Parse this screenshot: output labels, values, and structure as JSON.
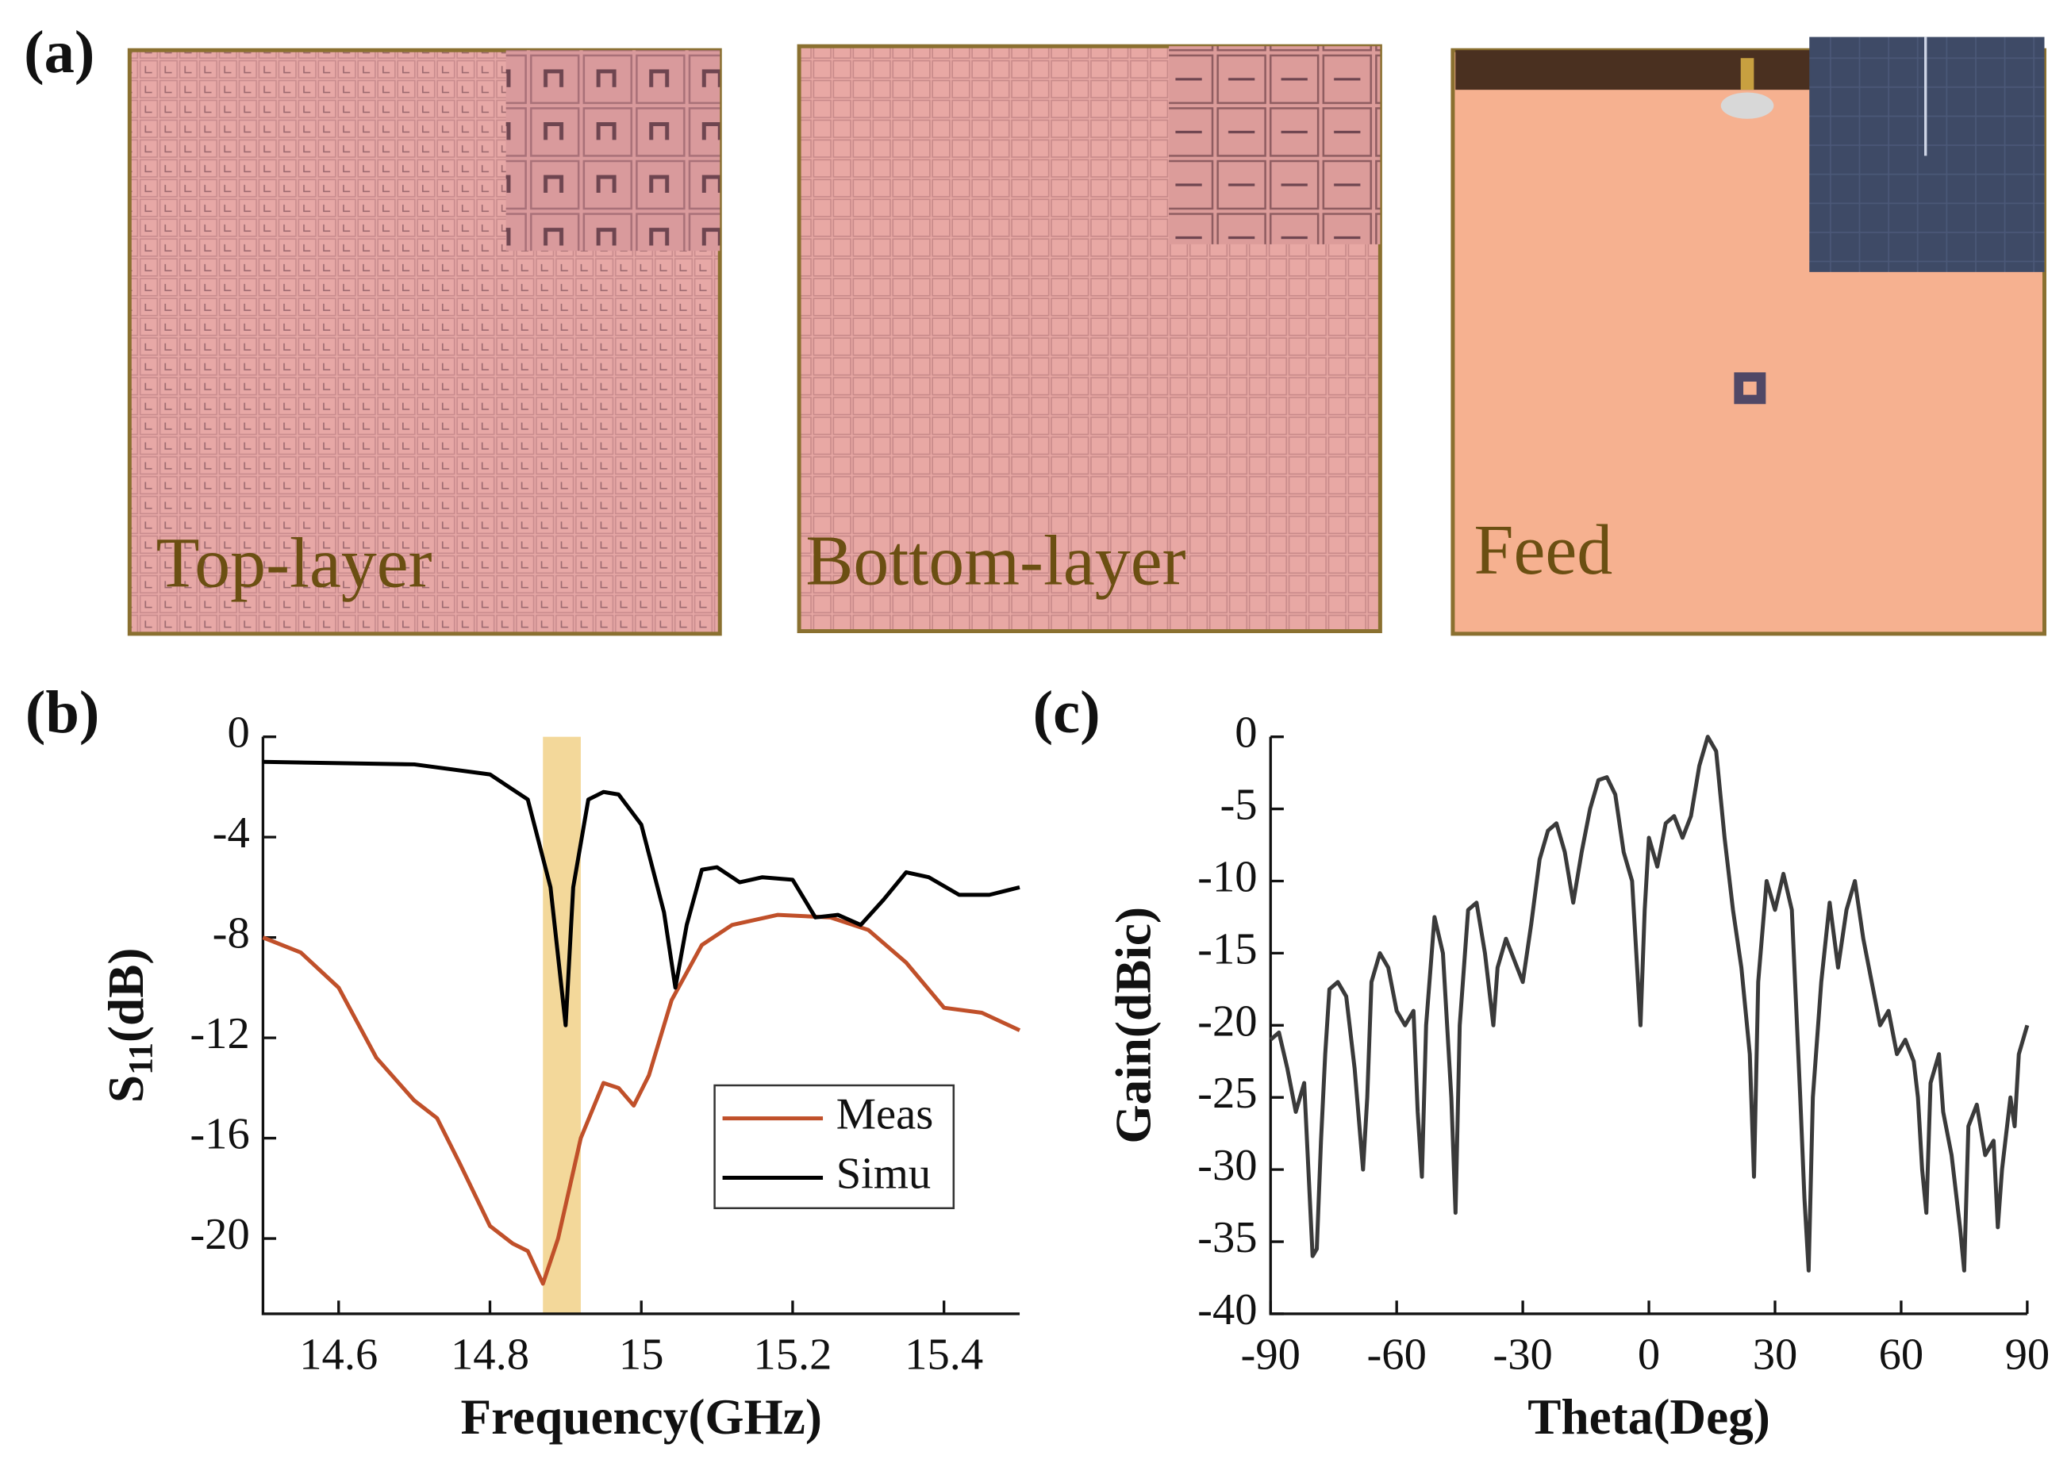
{
  "panel_a": {
    "label": "(a)",
    "photos": [
      "Top-layer",
      "Bottom-layer",
      "Feed"
    ]
  },
  "chart_data": [
    {
      "type": "line",
      "panel_label": "(b)",
      "xlabel": "Frequency(GHz)",
      "ylabel": [
        "S",
        "11",
        "(dB)"
      ],
      "xlim": [
        14.5,
        15.5
      ],
      "xticks": [
        14.6,
        14.8,
        15.0,
        15.2,
        15.4
      ],
      "ylim": [
        -23,
        0
      ],
      "yticks": [
        0,
        -4,
        -8,
        -12,
        -16,
        -20
      ],
      "highlight": [
        14.87,
        14.92
      ],
      "legend": "lower right",
      "series": [
        {
          "name": "Meas",
          "color": "#c0502a",
          "x": [
            14.5,
            14.55,
            14.6,
            14.65,
            14.7,
            14.73,
            14.76,
            14.8,
            14.83,
            14.85,
            14.87,
            14.89,
            14.92,
            14.95,
            14.97,
            14.99,
            15.01,
            15.04,
            15.08,
            15.12,
            15.18,
            15.25,
            15.3,
            15.35,
            15.4,
            15.45,
            15.5
          ],
          "values": [
            -8,
            -8.6,
            -10,
            -12.8,
            -14.5,
            -15.2,
            -17,
            -19.5,
            -20.2,
            -20.5,
            -21.8,
            -20,
            -16,
            -13.8,
            -14,
            -14.7,
            -13.5,
            -10.5,
            -8.3,
            -7.5,
            -7.1,
            -7.2,
            -7.7,
            -9,
            -10.8,
            -11,
            -11.7
          ]
        },
        {
          "name": "Simu",
          "color": "#000000",
          "x": [
            14.5,
            14.6,
            14.7,
            14.8,
            14.85,
            14.88,
            14.9,
            14.91,
            14.93,
            14.95,
            14.97,
            15.0,
            15.03,
            15.045,
            15.06,
            15.08,
            15.1,
            15.13,
            15.16,
            15.2,
            15.23,
            15.26,
            15.29,
            15.32,
            15.35,
            15.38,
            15.42,
            15.46,
            15.5
          ],
          "values": [
            -1,
            -1.05,
            -1.1,
            -1.5,
            -2.5,
            -6,
            -11.5,
            -6,
            -2.5,
            -2.2,
            -2.3,
            -3.5,
            -7,
            -10,
            -7.5,
            -5.3,
            -5.2,
            -5.8,
            -5.6,
            -5.7,
            -7.2,
            -7.1,
            -7.5,
            -6.5,
            -5.4,
            -5.6,
            -6.3,
            -6.3,
            -6
          ]
        }
      ]
    },
    {
      "type": "line",
      "panel_label": "(c)",
      "xlabel": "Theta(Deg)",
      "ylabel": "Gain(dBic)",
      "xlim": [
        -90,
        90
      ],
      "xticks": [
        -90,
        -60,
        -30,
        0,
        30,
        60,
        90
      ],
      "ylim": [
        -40,
        0
      ],
      "yticks": [
        0,
        -5,
        -10,
        -15,
        -20,
        -25,
        -30,
        -35,
        -40
      ],
      "series": [
        {
          "color": "#3a3a3a",
          "x": [
            -90,
            -88,
            -86,
            -84,
            -82,
            -81,
            -80,
            -79,
            -78,
            -77,
            -76,
            -74,
            -72,
            -70,
            -68,
            -67,
            -66,
            -64,
            -62,
            -60,
            -58,
            -56,
            -55,
            -54,
            -53,
            -51,
            -49,
            -47,
            -46,
            -45,
            -43,
            -41,
            -39,
            -37,
            -36,
            -34,
            -32,
            -30,
            -28,
            -26,
            -24,
            -22,
            -20,
            -18,
            -16,
            -14,
            -12,
            -10,
            -8,
            -6,
            -4,
            -3,
            -2,
            -1,
            0,
            2,
            4,
            6,
            8,
            10,
            12,
            14,
            16,
            18,
            20,
            22,
            24,
            25,
            26,
            28,
            30,
            32,
            34,
            36,
            37,
            38,
            39,
            41,
            43,
            45,
            47,
            49,
            51,
            53,
            55,
            57,
            59,
            61,
            63,
            64,
            65,
            66,
            67,
            69,
            70,
            72,
            74,
            75,
            76,
            78,
            80,
            82,
            83,
            84,
            86,
            87,
            88,
            90
          ],
          "values": [
            -21,
            -20.5,
            -23,
            -26,
            -24,
            -30,
            -36,
            -35.5,
            -28,
            -22,
            -17.5,
            -17,
            -18,
            -23,
            -30,
            -25,
            -17,
            -15,
            -16,
            -19,
            -20,
            -19,
            -26,
            -30.5,
            -20,
            -12.5,
            -15,
            -25,
            -33,
            -20,
            -12,
            -11.5,
            -15,
            -20,
            -16,
            -14,
            -15.5,
            -17,
            -13,
            -8.5,
            -6.5,
            -6,
            -8,
            -11.5,
            -8,
            -5,
            -3,
            -2.8,
            -4,
            -8,
            -10,
            -15,
            -20,
            -12,
            -7,
            -9,
            -6,
            -5.5,
            -7,
            -5.5,
            -2,
            0,
            -1,
            -7,
            -12,
            -16,
            -22,
            -30.5,
            -17,
            -10,
            -12,
            -9.5,
            -12,
            -25,
            -32,
            -37,
            -25,
            -17,
            -11.5,
            -16,
            -12,
            -10,
            -14,
            -17,
            -20,
            -19,
            -22,
            -21,
            -22.5,
            -25,
            -30,
            -33,
            -24,
            -22,
            -26,
            -29,
            -34,
            -37,
            -27,
            -25.5,
            -29,
            -28,
            -34,
            -30,
            -25,
            -27,
            -22,
            -20
          ]
        }
      ]
    }
  ]
}
